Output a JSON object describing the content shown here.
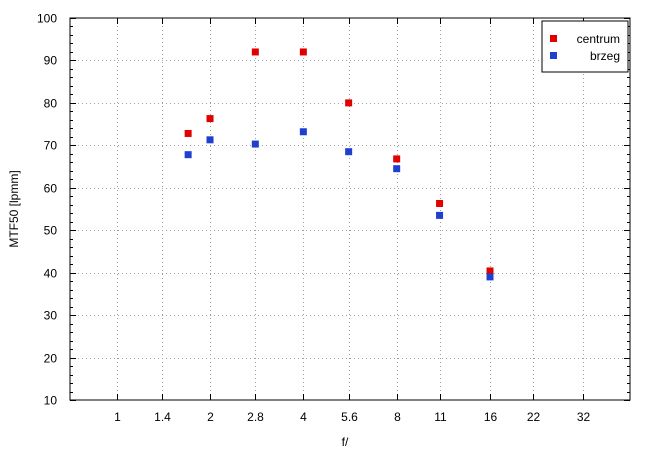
{
  "chart_data": {
    "type": "scatter",
    "title": "",
    "xlabel": "f/",
    "ylabel": "MTF50 [lpmm]",
    "x_scale": "log2",
    "xlim": [
      0.707,
      45.25
    ],
    "ylim": [
      10,
      100
    ],
    "grid": true,
    "legend_position": "top-right",
    "x_ticks": [
      {
        "value": 1,
        "label": "1"
      },
      {
        "value": 1.4,
        "label": "1.4"
      },
      {
        "value": 2,
        "label": "2"
      },
      {
        "value": 2.8,
        "label": "2.8"
      },
      {
        "value": 4,
        "label": "4"
      },
      {
        "value": 5.6,
        "label": "5.6"
      },
      {
        "value": 8,
        "label": "8"
      },
      {
        "value": 11,
        "label": "11"
      },
      {
        "value": 16,
        "label": "16"
      },
      {
        "value": 22,
        "label": "22"
      },
      {
        "value": 32,
        "label": "32"
      }
    ],
    "y_ticks": [
      10,
      20,
      30,
      40,
      50,
      60,
      70,
      80,
      90,
      100
    ],
    "series": [
      {
        "name": "centrum",
        "color": "#e00000",
        "x": [
          1.7,
          2,
          2.8,
          4,
          5.6,
          8,
          11,
          16
        ],
        "values": [
          72.8,
          76.3,
          92.0,
          92.0,
          80.0,
          66.8,
          56.3,
          40.4
        ]
      },
      {
        "name": "brzeg",
        "color": "#1f3fd0",
        "x": [
          1.7,
          2,
          2.8,
          4,
          5.6,
          8,
          11,
          16
        ],
        "values": [
          67.8,
          71.3,
          70.3,
          73.2,
          68.5,
          64.5,
          53.5,
          39.0
        ]
      }
    ]
  }
}
